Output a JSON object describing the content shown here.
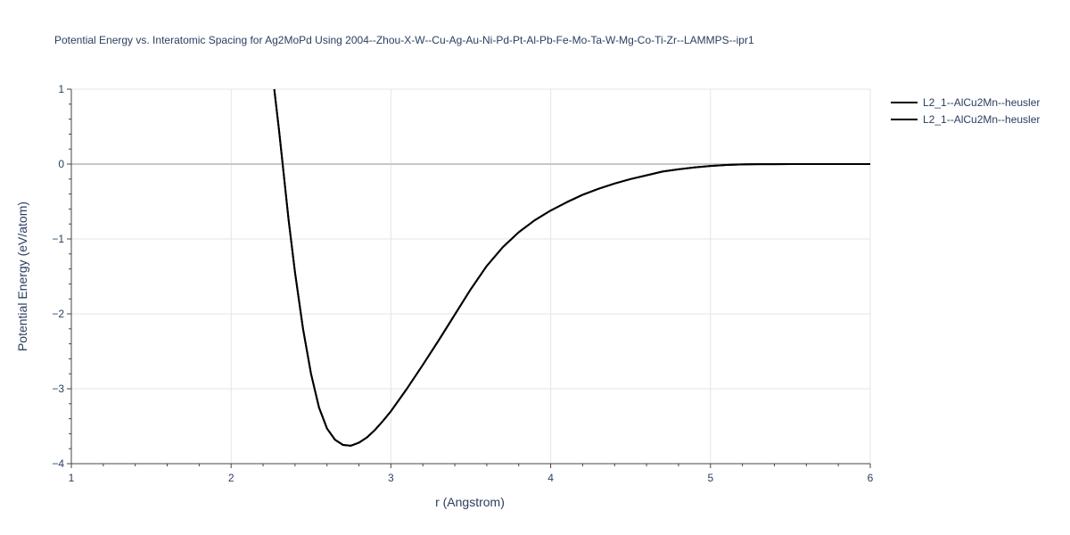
{
  "title": "Potential Energy vs. Interatomic Spacing for Ag2MoPd Using 2004--Zhou-X-W--Cu-Ag-Au-Ni-Pd-Pt-Al-Pb-Fe-Mo-Ta-W-Mg-Co-Ti-Zr--LAMMPS--ipr1",
  "chart_data": {
    "type": "line",
    "title": "Potential Energy vs. Interatomic Spacing for Ag2MoPd Using 2004--Zhou-X-W--Cu-Ag-Au-Ni-Pd-Pt-Al-Pb-Fe-Mo-Ta-W-Mg-Co-Ti-Zr--LAMMPS--ipr1",
    "xlabel": "r (Angstrom)",
    "ylabel": "Potential Energy (eV/atom)",
    "xlim": [
      1,
      6
    ],
    "ylim": [
      -4,
      1
    ],
    "xticks": [
      "1",
      "2",
      "3",
      "4",
      "5",
      "6"
    ],
    "yticks": [
      "1",
      "0",
      "−1",
      "−2",
      "−3",
      "−4"
    ],
    "grid": true,
    "legend_position": "top-right",
    "line_color": "#000000",
    "series": [
      {
        "name": "L2_1--AlCu2Mn--heusler",
        "x": [
          2.27,
          2.3,
          2.33,
          2.36,
          2.4,
          2.45,
          2.5,
          2.55,
          2.6,
          2.65,
          2.7,
          2.75,
          2.8,
          2.85,
          2.9,
          2.95,
          3.0,
          3.1,
          3.2,
          3.3,
          3.4,
          3.5,
          3.6,
          3.7,
          3.8,
          3.9,
          4.0,
          4.1,
          4.2,
          4.3,
          4.4,
          4.5,
          4.6,
          4.7,
          4.8,
          4.9,
          5.0,
          5.1,
          5.2,
          5.3,
          5.4,
          5.5,
          5.75,
          6.0
        ],
        "y": [
          1.0,
          0.45,
          -0.15,
          -0.75,
          -1.45,
          -2.2,
          -2.8,
          -3.25,
          -3.53,
          -3.68,
          -3.75,
          -3.76,
          -3.72,
          -3.65,
          -3.55,
          -3.43,
          -3.3,
          -3.0,
          -2.68,
          -2.35,
          -2.01,
          -1.67,
          -1.36,
          -1.11,
          -0.91,
          -0.75,
          -0.62,
          -0.51,
          -0.41,
          -0.33,
          -0.26,
          -0.2,
          -0.15,
          -0.1,
          -0.07,
          -0.045,
          -0.025,
          -0.012,
          -0.005,
          -0.002,
          -0.001,
          0.0,
          0.0,
          0.0
        ]
      },
      {
        "name": "L2_1--AlCu2Mn--heusler",
        "x": [
          2.27,
          2.3,
          2.33,
          2.36,
          2.4,
          2.45,
          2.5,
          2.55,
          2.6,
          2.65,
          2.7,
          2.75,
          2.8,
          2.85,
          2.9,
          2.95,
          3.0,
          3.1,
          3.2,
          3.3,
          3.4,
          3.5,
          3.6,
          3.7,
          3.8,
          3.9,
          4.0,
          4.1,
          4.2,
          4.3,
          4.4,
          4.5,
          4.6,
          4.7,
          4.8,
          4.9,
          5.0,
          5.1,
          5.2,
          5.3,
          5.4,
          5.5,
          5.75,
          6.0
        ],
        "y": [
          1.0,
          0.45,
          -0.15,
          -0.75,
          -1.45,
          -2.2,
          -2.8,
          -3.25,
          -3.53,
          -3.68,
          -3.75,
          -3.76,
          -3.72,
          -3.65,
          -3.55,
          -3.43,
          -3.3,
          -3.0,
          -2.68,
          -2.35,
          -2.01,
          -1.67,
          -1.36,
          -1.11,
          -0.91,
          -0.75,
          -0.62,
          -0.51,
          -0.41,
          -0.33,
          -0.26,
          -0.2,
          -0.15,
          -0.1,
          -0.07,
          -0.045,
          -0.025,
          -0.012,
          -0.005,
          -0.002,
          -0.001,
          0.0,
          0.0,
          0.0
        ]
      }
    ]
  }
}
